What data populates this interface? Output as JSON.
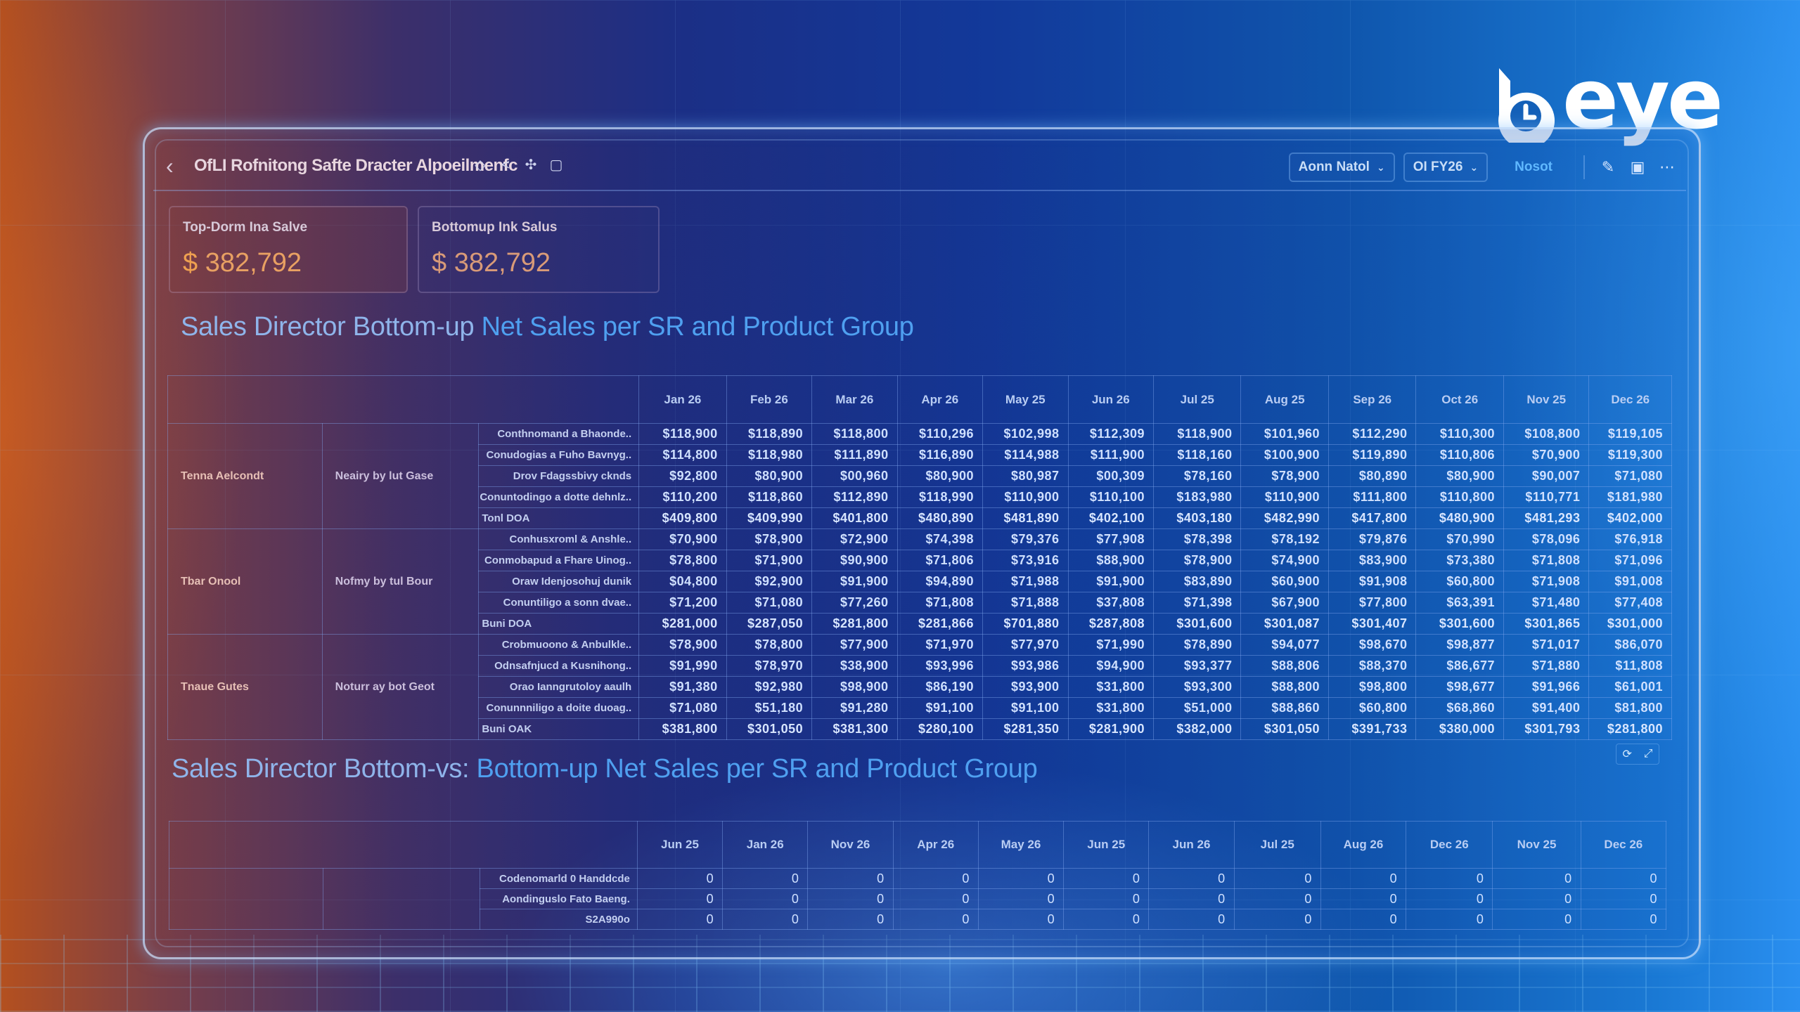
{
  "brand": {
    "logo_text": "eye",
    "logo_mark": "b"
  },
  "header": {
    "title": "OfLI Rofnitong Safte Dracter Alpoeilmenfc",
    "icons": [
      "diamond-icon",
      "share-icon",
      "pin-icon",
      "bookmark-icon"
    ],
    "filters": [
      {
        "label": "Aonn Natol",
        "icon": "chevron-down-icon"
      },
      {
        "label": "OI FY26",
        "icon": "chevron-down-icon"
      }
    ],
    "reset_label": "Nosot",
    "actions": [
      "edit-icon",
      "comment-icon",
      "more-icon"
    ]
  },
  "kpis": [
    {
      "label": "Top-Dorm Ina Salve",
      "currency": "$",
      "value": "382,792"
    },
    {
      "label": "Bottomup Ink Salus",
      "currency": "$",
      "value": "382,792"
    }
  ],
  "section1": {
    "title_part1": "Sales Director Bottom-up ",
    "title_part2": "Net Sales per SR and Product Group",
    "months": [
      "Jan 26",
      "Feb 26",
      "Mar 26",
      "Apr 26",
      "May 25",
      "Jun 26",
      "Jul 25",
      "Aug 25",
      "Sep 26",
      "Oct 26",
      "Nov 25",
      "Dec 26"
    ],
    "groups": [
      {
        "group": "Tenna Aelcondt",
        "sr": "Neairy by lut Gase",
        "rows": [
          {
            "product": "Conthnomand a Bhaonde..",
            "values": [
              "$118,900",
              "$118,890",
              "$118,800",
              "$110,296",
              "$102,998",
              "$112,309",
              "$118,900",
              "$101,960",
              "$112,290",
              "$110,300",
              "$108,800",
              "$119,105"
            ]
          },
          {
            "product": "Conudogias a Fuho Bavnyg..",
            "values": [
              "$114,800",
              "$118,980",
              "$111,890",
              "$116,890",
              "$114,988",
              "$111,900",
              "$118,160",
              "$100,900",
              "$119,890",
              "$110,806",
              "$70,900",
              "$119,300"
            ]
          },
          {
            "product": "Drov Fdagssbivy cknds",
            "values": [
              "$92,800",
              "$80,900",
              "$00,960",
              "$80,900",
              "$80,987",
              "$00,309",
              "$78,160",
              "$78,900",
              "$80,890",
              "$80,900",
              "$90,007",
              "$71,080"
            ]
          },
          {
            "product": "Conuntodingo a dotte dehnlz..",
            "values": [
              "$110,200",
              "$118,860",
              "$112,890",
              "$118,990",
              "$110,900",
              "$110,100",
              "$183,980",
              "$110,900",
              "$111,800",
              "$110,800",
              "$110,771",
              "$181,980"
            ]
          },
          {
            "product": "Tonl DOA",
            "total": true,
            "values": [
              "$409,800",
              "$409,990",
              "$401,800",
              "$480,890",
              "$481,890",
              "$402,100",
              "$403,180",
              "$482,990",
              "$417,800",
              "$480,900",
              "$481,293",
              "$402,000"
            ]
          }
        ]
      },
      {
        "group": "Tbar Onool",
        "sr": "Nofmy by tul Bour",
        "rows": [
          {
            "product": "Conhusxroml & Anshle..",
            "values": [
              "$70,900",
              "$78,900",
              "$72,900",
              "$74,398",
              "$79,376",
              "$77,908",
              "$78,398",
              "$78,192",
              "$79,876",
              "$70,990",
              "$78,096",
              "$76,918"
            ]
          },
          {
            "product": "Conmobapud a Fhare Uinog..",
            "values": [
              "$78,800",
              "$71,900",
              "$90,900",
              "$71,806",
              "$73,916",
              "$88,900",
              "$78,900",
              "$74,900",
              "$83,900",
              "$73,380",
              "$71,808",
              "$71,096"
            ]
          },
          {
            "product": "Oraw Idenjosohuj dunik",
            "values": [
              "$04,800",
              "$92,900",
              "$91,900",
              "$94,890",
              "$71,988",
              "$91,900",
              "$83,890",
              "$60,900",
              "$91,908",
              "$60,800",
              "$71,908",
              "$91,008"
            ]
          },
          {
            "product": "Conuntiligo a sonn dvae..",
            "values": [
              "$71,200",
              "$71,080",
              "$77,260",
              "$71,808",
              "$71,888",
              "$37,808",
              "$71,398",
              "$67,900",
              "$77,800",
              "$63,391",
              "$71,480",
              "$77,408"
            ]
          },
          {
            "product": "Buni DOA",
            "total": true,
            "values": [
              "$281,000",
              "$287,050",
              "$281,800",
              "$281,866",
              "$701,880",
              "$287,808",
              "$301,600",
              "$301,087",
              "$301,407",
              "$301,600",
              "$301,865",
              "$301,000"
            ]
          }
        ]
      },
      {
        "group": "Tnaue Gutes",
        "sr": "Noturr ay bot Geot",
        "rows": [
          {
            "product": "Crobmuoono & Anbulkle..",
            "values": [
              "$78,900",
              "$78,800",
              "$77,900",
              "$71,970",
              "$77,970",
              "$71,990",
              "$78,890",
              "$94,077",
              "$98,670",
              "$98,877",
              "$71,017",
              "$86,070"
            ]
          },
          {
            "product": "Odnsafnjucd a Kusnihong..",
            "values": [
              "$91,990",
              "$78,970",
              "$38,900",
              "$93,996",
              "$93,986",
              "$94,900",
              "$93,377",
              "$88,806",
              "$88,370",
              "$86,677",
              "$71,880",
              "$11,808"
            ]
          },
          {
            "product": "Orao Ianngrutoloy aaulh",
            "values": [
              "$91,380",
              "$92,980",
              "$98,900",
              "$86,190",
              "$93,900",
              "$31,800",
              "$93,300",
              "$88,800",
              "$98,800",
              "$98,677",
              "$91,966",
              "$61,001"
            ]
          },
          {
            "product": "Conunnniligo a doite duoag..",
            "values": [
              "$71,080",
              "$51,180",
              "$91,280",
              "$91,100",
              "$91,100",
              "$31,800",
              "$51,000",
              "$88,860",
              "$60,800",
              "$68,860",
              "$91,400",
              "$81,800"
            ]
          },
          {
            "product": "Buni OAK",
            "total": true,
            "values": [
              "$381,800",
              "$301,050",
              "$381,300",
              "$280,100",
              "$281,350",
              "$281,900",
              "$382,000",
              "$301,050",
              "$391,733",
              "$380,000",
              "$301,793",
              "$281,800"
            ]
          }
        ]
      }
    ],
    "tools": [
      "refresh-icon",
      "expand-icon"
    ]
  },
  "section2": {
    "title_part1": "Sales Director Bottom-vs: ",
    "title_part2": "Bottom-up Net Sales per SR and Product Group",
    "months": [
      "Jun 25",
      "Jan 26",
      "Nov 26",
      "Apr 26",
      "May 26",
      "Jun 25",
      "Jun 26",
      "Jul 25",
      "Aug 26",
      "Dec 26",
      "Nov 25",
      "Dec 26"
    ],
    "rows": [
      {
        "product": "Codenomarld 0 Handdcde",
        "values": [
          "0",
          "0",
          "0",
          "0",
          "0",
          "0",
          "0",
          "0",
          "0",
          "0",
          "0",
          "0"
        ]
      },
      {
        "product": "Aondinguslo Fato Baeng.",
        "values": [
          "0",
          "0",
          "0",
          "0",
          "0",
          "0",
          "0",
          "0",
          "0",
          "0",
          "0",
          "0"
        ]
      },
      {
        "product": "S2A990o",
        "values": [
          "0",
          "0",
          "0",
          "0",
          "0",
          "0",
          "0",
          "0",
          "0",
          "0",
          "0",
          "0"
        ]
      }
    ]
  },
  "colors": {
    "kpi_value": "#e8a062",
    "title_highlight": "#4fa0f0",
    "title_muted": "#8fb4ea",
    "reset": "#5fb8ff"
  }
}
